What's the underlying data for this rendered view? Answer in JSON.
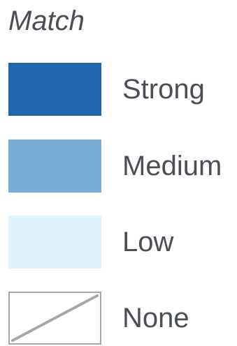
{
  "legend": {
    "title": "Match",
    "items": [
      {
        "label": "Strong",
        "color": "#1f66ae"
      },
      {
        "label": "Medium",
        "color": "#76acd5"
      },
      {
        "label": "Low",
        "color": "#def3f9"
      },
      {
        "label": "None",
        "color": "#ffffff",
        "border_color": "#a7a7a7",
        "line_color": "#a7a7a7"
      }
    ]
  }
}
